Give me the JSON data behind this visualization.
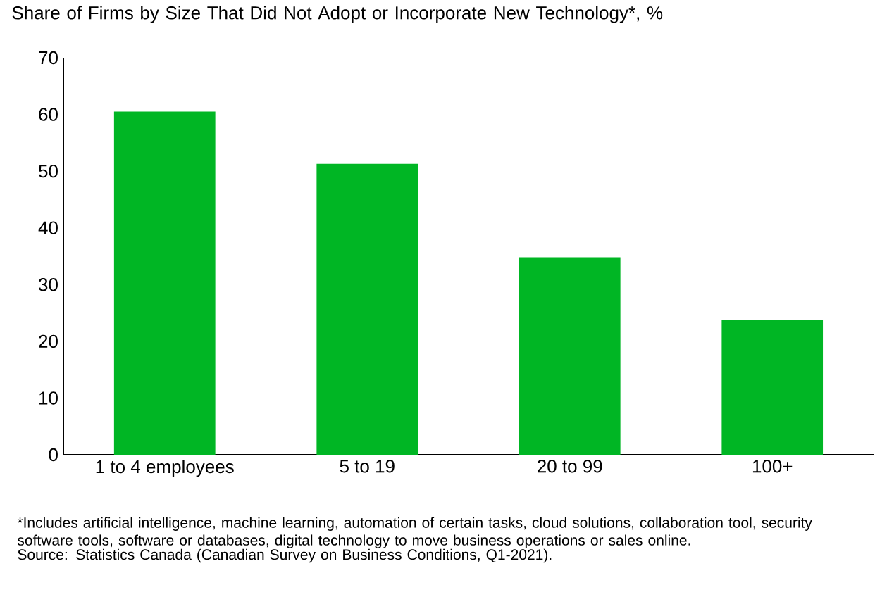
{
  "chart_data": {
    "type": "bar",
    "title": "Share of Firms by Size That Did Not Adopt or Incorporate New Technology*, %",
    "categories": [
      "1 to 4 employees",
      "5 to 19",
      "20 to 99",
      "100+"
    ],
    "values": [
      60.5,
      51.3,
      34.8,
      23.8
    ],
    "color": "#00b624",
    "ylim": [
      0,
      70
    ],
    "yticks": [
      0,
      10,
      20,
      30,
      40,
      50,
      60,
      70
    ],
    "grid": false,
    "annotations": [
      "*Includes artificial intelligence, machine learning, automation of certain tasks, cloud solutions, collaboration tool, security software tools, software or databases, digital technology to move business operations or sales online.",
      "Source: Statistics Canada (Canadian Survey on Business Conditions, Q1-2021)."
    ]
  }
}
